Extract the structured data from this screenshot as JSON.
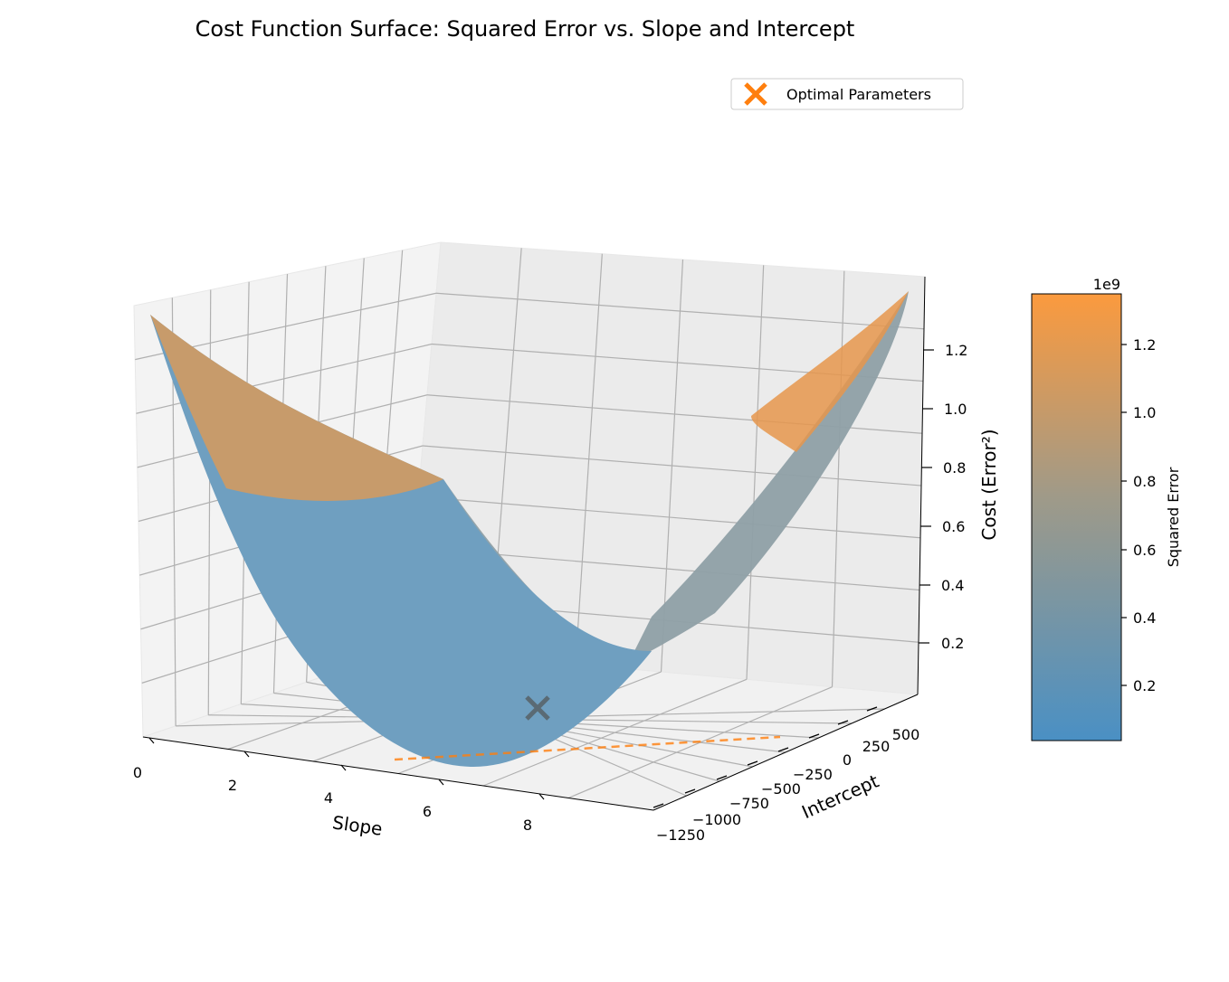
{
  "chart_data": {
    "type": "surface",
    "title": "Cost Function Surface: Squared Error vs. Slope and Intercept",
    "xlabel": "Slope",
    "ylabel": "Intercept",
    "zlabel": "Cost (Error²)",
    "x_ticks": [
      "0",
      "2",
      "4",
      "6",
      "8"
    ],
    "y_ticks": [
      "−1250",
      "−1000",
      "−750",
      "−500",
      "−250",
      "0",
      "250",
      "500"
    ],
    "z_ticks": [
      "0.2",
      "0.4",
      "0.6",
      "0.8",
      "1.0",
      "1.2"
    ],
    "xlim": [
      0,
      10
    ],
    "ylim": [
      -1300,
      700
    ],
    "zlim": [
      0,
      1.4
    ],
    "z_min": 0.04,
    "z_max": 1.35,
    "optimal": {
      "slope": 5.0,
      "intercept": -100,
      "cost": 0.05
    },
    "legend": {
      "label": "Optimal Parameters",
      "placement": "top-right"
    },
    "colorbar": {
      "label": "Squared Error",
      "offset_text": "1e9",
      "ticks": [
        "0.2",
        "0.4",
        "0.6",
        "0.8",
        "1.0",
        "1.2"
      ],
      "low_color": "#4a90c4",
      "mid_color": "#a09a88",
      "high_color": "#fb9a3e"
    },
    "marker_color": "#ff7f0e",
    "line_color": "#ff7f0e",
    "grid": true
  }
}
